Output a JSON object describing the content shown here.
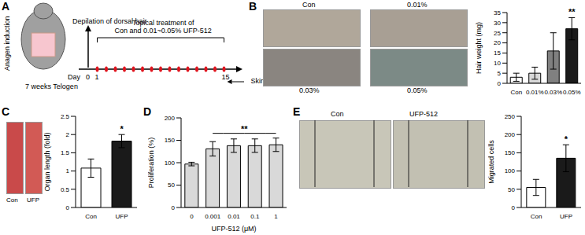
{
  "panel_letters": [
    "A",
    "B",
    "C",
    "D",
    "E"
  ],
  "diagram": {
    "title": "Anagen induction",
    "depilation": "Depilation of dorsal hair",
    "treatment": [
      "Topical treatment of",
      "Con and 0.01~0.05% UFP-512"
    ],
    "day_label": "Day",
    "days": [
      "0",
      "1",
      "15"
    ],
    "telogen": "7 weeks Telogen",
    "collection": "Skin collection"
  },
  "photos": {
    "B": [
      "Con",
      "0.01%",
      "0.03%",
      "0.05%"
    ],
    "C": [
      "Con",
      "UFP"
    ],
    "E": [
      "Con",
      "UFP-512"
    ]
  },
  "chart_data": [
    {
      "type": "bar",
      "y_label": "Hair weight (mg)",
      "categories": [
        "Con",
        "0.01%",
        "0.03%",
        "0.05%"
      ],
      "values": [
        3,
        5,
        16,
        27
      ],
      "errors": [
        2,
        3,
        9,
        5.5
      ],
      "colors": [
        "#ffffff",
        "#d9d9d9",
        "#808080",
        "#1a1a1a"
      ],
      "ylim": [
        0,
        35
      ],
      "yticks": [
        0,
        5,
        10,
        15,
        20,
        25,
        30,
        35
      ],
      "annotations": [
        {
          "category": "0.05%",
          "text": "**"
        }
      ]
    },
    {
      "type": "bar",
      "y_label": "Organ length (fold)",
      "categories": [
        "Con",
        "UFP"
      ],
      "values": [
        1.08,
        1.82
      ],
      "errors": [
        0.25,
        0.18
      ],
      "colors": [
        "#ffffff",
        "#1a1a1a"
      ],
      "ylim": [
        0,
        2.5
      ],
      "yticks": [
        0,
        0.5,
        1,
        1.5,
        2,
        2.5
      ],
      "annotations": [
        {
          "category": "UFP",
          "text": "*"
        }
      ]
    },
    {
      "type": "bar",
      "y_label": "Proliferation (%)",
      "x_label": "UFP-512 (μM)",
      "categories": [
        "0",
        "0.001",
        "0.01",
        "0.1",
        "1"
      ],
      "values": [
        97,
        131,
        138,
        138,
        140
      ],
      "errors": [
        4,
        16,
        15,
        15,
        15
      ],
      "color": "#d9d9d9",
      "ylim": [
        0,
        200
      ],
      "yticks": [
        0,
        50,
        100,
        150,
        200
      ],
      "annotations": [
        {
          "from": "0.001",
          "to": "1",
          "text": "**"
        }
      ]
    },
    {
      "type": "bar",
      "y_label": "Migrated cells",
      "categories": [
        "Con",
        "UFP"
      ],
      "values": [
        55,
        135
      ],
      "errors": [
        22,
        37
      ],
      "colors": [
        "#ffffff",
        "#1a1a1a"
      ],
      "ylim": [
        0,
        250
      ],
      "yticks": [
        0,
        50,
        100,
        150,
        200,
        250
      ],
      "annotations": [
        {
          "category": "UFP",
          "text": "*"
        }
      ]
    }
  ]
}
